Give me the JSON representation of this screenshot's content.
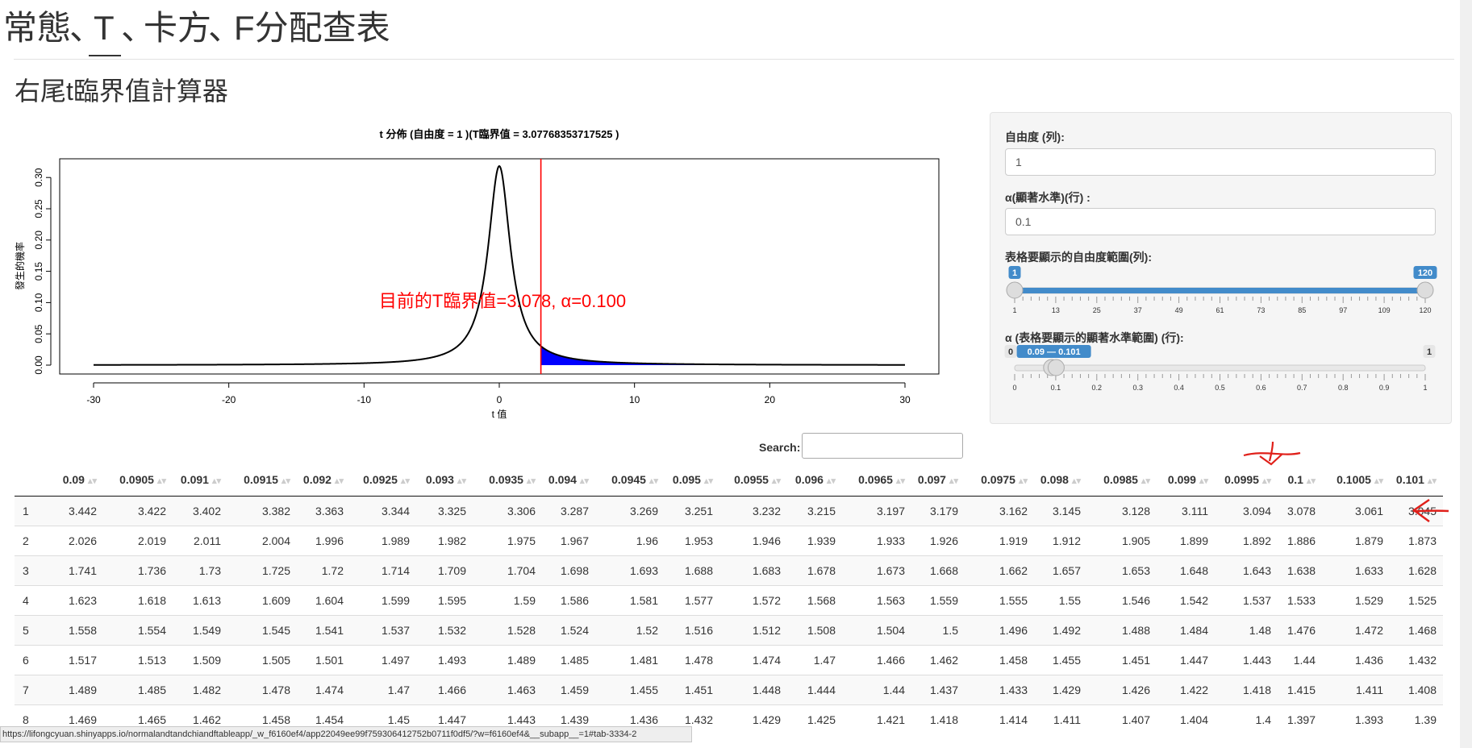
{
  "nav": {
    "items": [
      "常態",
      "、",
      "T",
      "、",
      "卡方",
      "、",
      "F分配查表"
    ],
    "active_index": 2
  },
  "page_title": "右尾t臨界值計算器",
  "plot": {
    "title": "t 分佈 (自由度 = 1 )(T臨界值 = 3.07768353717525 )",
    "xlabel": "t 值",
    "ylabel": "發生的機率",
    "x_ticks": [
      "-30",
      "-20",
      "-10",
      "0",
      "10",
      "20",
      "30"
    ],
    "y_ticks": [
      "0.00",
      "0.05",
      "0.10",
      "0.15",
      "0.20",
      "0.25",
      "0.30"
    ],
    "annotation": "目前的T臨界值=3.078, α=0.100"
  },
  "chart_data": {
    "type": "line",
    "title": "t 分佈 (自由度 = 1 )(T臨界值 = 3.07768353717525 )",
    "xlabel": "t 值",
    "ylabel": "發生的機率",
    "xlim": [
      -30,
      30
    ],
    "ylim": [
      0,
      0.3183
    ],
    "x_ticks": [
      -30,
      -20,
      -10,
      0,
      10,
      20,
      30
    ],
    "y_ticks": [
      0,
      0.05,
      0.1,
      0.15,
      0.2,
      0.25,
      0.3
    ],
    "series": [
      {
        "x": [
          -30,
          -20,
          -10,
          -5,
          -3,
          -2,
          -1,
          -0.5,
          0,
          0.5,
          1,
          2,
          3,
          5,
          10,
          20,
          30
        ],
        "values": [
          0.00035,
          0.00079,
          0.00315,
          0.01224,
          0.03183,
          0.06366,
          0.15915,
          0.25465,
          0.31831,
          0.25465,
          0.15915,
          0.06366,
          0.03183,
          0.01224,
          0.00315,
          0.00079,
          0.00035
        ]
      }
    ],
    "critical_value": 3.07768353717525,
    "shaded_region": [
      3.07768353717525,
      30
    ],
    "colors": {
      "curve": "#000000",
      "critical_line": "#ff0000",
      "shade": "#0000ff",
      "annotation": "#ff0000"
    },
    "annotation": "目前的T臨界值=3.078, α=0.100",
    "grid": false
  },
  "sidebar": {
    "df_label": "自由度 (列):",
    "df_value": "1",
    "alpha_label": "α(顯著水準)(行) :",
    "alpha_value": "0.1",
    "df_range_label": "表格要顯示的自由度範圍(列):",
    "df_range": {
      "min": 1,
      "max": 120,
      "from": 1,
      "to": 120,
      "from_label": "1",
      "to_label": "120",
      "ticks": [
        "1",
        "13",
        "25",
        "37",
        "49",
        "61",
        "73",
        "85",
        "97",
        "109",
        "120"
      ]
    },
    "alpha_range_label": "α (表格要顯示的顯著水準範圍) (行):",
    "alpha_range": {
      "min": 0,
      "max": 1,
      "from": 0.09,
      "to": 0.101,
      "min_label": "0",
      "max_label": "1",
      "value_label": "0.09 — 0.101",
      "ticks": [
        "0",
        "0.1",
        "0.2",
        "0.3",
        "0.4",
        "0.5",
        "0.6",
        "0.7",
        "0.8",
        "0.9",
        "1"
      ]
    },
    "accent_color": "#428bca"
  },
  "search": {
    "label": "Search:",
    "value": ""
  },
  "table": {
    "columns": [
      "",
      "0.09",
      "0.0905",
      "0.091",
      "0.0915",
      "0.092",
      "0.0925",
      "0.093",
      "0.0935",
      "0.094",
      "0.0945",
      "0.095",
      "0.0955",
      "0.096",
      "0.0965",
      "0.097",
      "0.0975",
      "0.098",
      "0.0985",
      "0.099",
      "0.0995",
      "0.1",
      "0.1005",
      "0.101"
    ],
    "rows": [
      [
        "1",
        "3.442",
        "3.422",
        "3.402",
        "3.382",
        "3.363",
        "3.344",
        "3.325",
        "3.306",
        "3.287",
        "3.269",
        "3.251",
        "3.232",
        "3.215",
        "3.197",
        "3.179",
        "3.162",
        "3.145",
        "3.128",
        "3.111",
        "3.094",
        "3.078",
        "3.061",
        "3.045"
      ],
      [
        "2",
        "2.026",
        "2.019",
        "2.011",
        "2.004",
        "1.996",
        "1.989",
        "1.982",
        "1.975",
        "1.967",
        "1.96",
        "1.953",
        "1.946",
        "1.939",
        "1.933",
        "1.926",
        "1.919",
        "1.912",
        "1.905",
        "1.899",
        "1.892",
        "1.886",
        "1.879",
        "1.873"
      ],
      [
        "3",
        "1.741",
        "1.736",
        "1.73",
        "1.725",
        "1.72",
        "1.714",
        "1.709",
        "1.704",
        "1.698",
        "1.693",
        "1.688",
        "1.683",
        "1.678",
        "1.673",
        "1.668",
        "1.662",
        "1.657",
        "1.653",
        "1.648",
        "1.643",
        "1.638",
        "1.633",
        "1.628"
      ],
      [
        "4",
        "1.623",
        "1.618",
        "1.613",
        "1.609",
        "1.604",
        "1.599",
        "1.595",
        "1.59",
        "1.586",
        "1.581",
        "1.577",
        "1.572",
        "1.568",
        "1.563",
        "1.559",
        "1.555",
        "1.55",
        "1.546",
        "1.542",
        "1.537",
        "1.533",
        "1.529",
        "1.525"
      ],
      [
        "5",
        "1.558",
        "1.554",
        "1.549",
        "1.545",
        "1.541",
        "1.537",
        "1.532",
        "1.528",
        "1.524",
        "1.52",
        "1.516",
        "1.512",
        "1.508",
        "1.504",
        "1.5",
        "1.496",
        "1.492",
        "1.488",
        "1.484",
        "1.48",
        "1.476",
        "1.472",
        "1.468"
      ],
      [
        "6",
        "1.517",
        "1.513",
        "1.509",
        "1.505",
        "1.501",
        "1.497",
        "1.493",
        "1.489",
        "1.485",
        "1.481",
        "1.478",
        "1.474",
        "1.47",
        "1.466",
        "1.462",
        "1.458",
        "1.455",
        "1.451",
        "1.447",
        "1.443",
        "1.44",
        "1.436",
        "1.432"
      ],
      [
        "7",
        "1.489",
        "1.485",
        "1.482",
        "1.478",
        "1.474",
        "1.47",
        "1.466",
        "1.463",
        "1.459",
        "1.455",
        "1.451",
        "1.448",
        "1.444",
        "1.44",
        "1.437",
        "1.433",
        "1.429",
        "1.426",
        "1.422",
        "1.418",
        "1.415",
        "1.411",
        "1.408"
      ],
      [
        "8",
        "1.469",
        "1.465",
        "1.462",
        "1.458",
        "1.454",
        "1.45",
        "1.447",
        "1.443",
        "1.439",
        "1.436",
        "1.432",
        "1.429",
        "1.425",
        "1.421",
        "1.418",
        "1.414",
        "1.411",
        "1.407",
        "1.404",
        "1.4",
        "1.397",
        "1.393",
        "1.39"
      ]
    ]
  },
  "status_url": "https://lifongcyuan.shinyapps.io/normalandtandchiandftableapp/_w_f6160ef4/app22049ee99f759306412752b0711f0df5/?w=f6160ef4&__subapp__=1#tab-3334-2"
}
